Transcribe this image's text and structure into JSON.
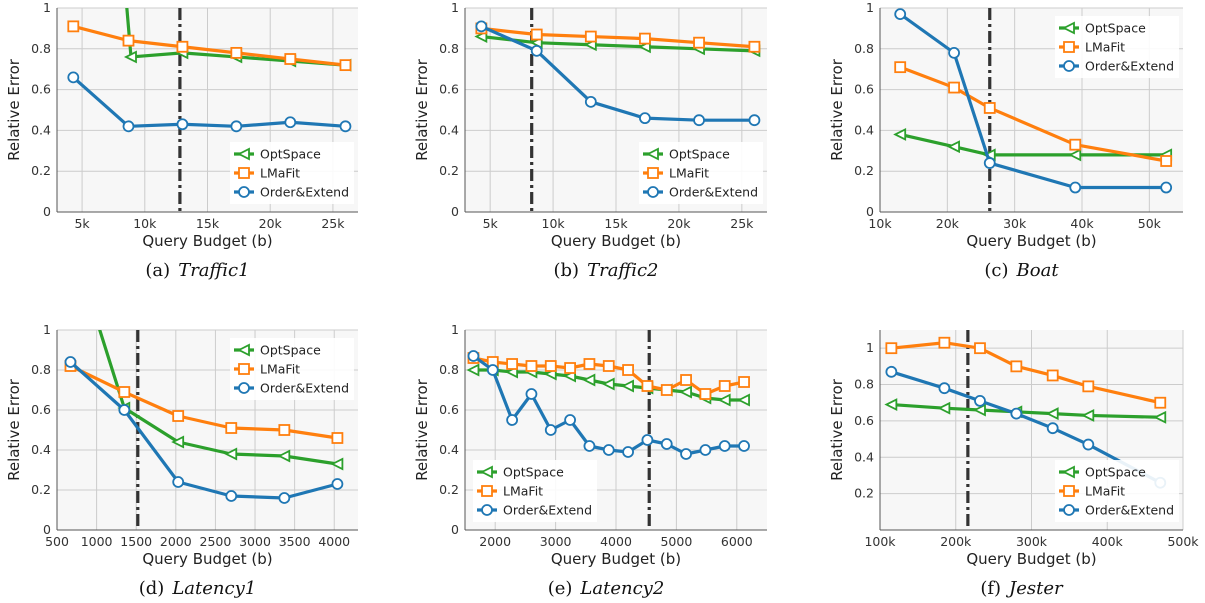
{
  "colors": {
    "OptSpace": "#2ca02c",
    "LMaFit": "#ff7f0e",
    "Order&Extend": "#1f77b4",
    "vline": "#333333",
    "grid": "#cccccc",
    "plot_bg": "#f7f7f7"
  },
  "marker_shapes": {
    "OptSpace": "triangle-left",
    "LMaFit": "square",
    "Order&Extend": "circle"
  },
  "chart_data": [
    {
      "type": "line",
      "caption_label": "(a)",
      "caption_name": "Traffic1",
      "xlabel": "Query Budget (b)",
      "ylabel": "Relative Error",
      "xlim": [
        3000,
        27000
      ],
      "ylim": [
        0,
        1
      ],
      "xticks": [
        5000,
        10000,
        15000,
        20000,
        25000
      ],
      "xtick_labels": [
        "5k",
        "10k",
        "15k",
        "20k",
        "25k"
      ],
      "yticks": [
        0,
        0.2,
        0.4,
        0.6,
        0.8,
        1
      ],
      "ytick_labels": [
        "0",
        "0.2",
        "0.4",
        "0.6",
        "0.8",
        "1"
      ],
      "vline": 12800,
      "grid": true,
      "legend_position": "bottom-right",
      "series": [
        {
          "name": "OptSpace",
          "x": [
            8500,
            8900,
            13000,
            17300,
            21600,
            26000
          ],
          "y": [
            1.05,
            0.76,
            0.78,
            0.76,
            0.74,
            0.72
          ]
        },
        {
          "name": "LMaFit",
          "x": [
            4300,
            8700,
            13000,
            17300,
            21600,
            26000
          ],
          "y": [
            0.91,
            0.84,
            0.81,
            0.78,
            0.75,
            0.72
          ]
        },
        {
          "name": "Order&Extend",
          "x": [
            4300,
            8700,
            13000,
            17300,
            21600,
            26000
          ],
          "y": [
            0.66,
            0.42,
            0.43,
            0.42,
            0.44,
            0.42
          ]
        }
      ]
    },
    {
      "type": "line",
      "caption_label": "(b)",
      "caption_name": "Traffic2",
      "xlabel": "Query Budget (b)",
      "ylabel": "Relative Error",
      "xlim": [
        3000,
        27000
      ],
      "ylim": [
        0,
        1
      ],
      "xticks": [
        5000,
        10000,
        15000,
        20000,
        25000
      ],
      "xtick_labels": [
        "5k",
        "10k",
        "15k",
        "20k",
        "25k"
      ],
      "yticks": [
        0,
        0.2,
        0.4,
        0.6,
        0.8,
        1
      ],
      "ytick_labels": [
        "0",
        "0.2",
        "0.4",
        "0.6",
        "0.8",
        "1"
      ],
      "vline": 8300,
      "grid": true,
      "legend_position": "bottom-right",
      "series": [
        {
          "name": "OptSpace",
          "x": [
            4300,
            8700,
            13000,
            17300,
            21600,
            26000
          ],
          "y": [
            0.86,
            0.83,
            0.82,
            0.81,
            0.8,
            0.79
          ]
        },
        {
          "name": "LMaFit",
          "x": [
            4300,
            8700,
            13000,
            17300,
            21600,
            26000
          ],
          "y": [
            0.9,
            0.87,
            0.86,
            0.85,
            0.83,
            0.81
          ]
        },
        {
          "name": "Order&Extend",
          "x": [
            4300,
            8700,
            13000,
            17300,
            21600,
            26000
          ],
          "y": [
            0.91,
            0.79,
            0.54,
            0.46,
            0.45,
            0.45
          ]
        }
      ]
    },
    {
      "type": "line",
      "caption_label": "(c)",
      "caption_name": "Boat",
      "xlabel": "Query Budget (b)",
      "ylabel": "Relative Error",
      "xlim": [
        10000,
        55000
      ],
      "ylim": [
        0,
        1
      ],
      "xticks": [
        10000,
        20000,
        30000,
        40000,
        50000
      ],
      "xtick_labels": [
        "10k",
        "20k",
        "30k",
        "40k",
        "50k"
      ],
      "yticks": [
        0,
        0.2,
        0.4,
        0.6,
        0.8,
        1
      ],
      "ytick_labels": [
        "0",
        "0.2",
        "0.4",
        "0.6",
        "0.8",
        "1"
      ],
      "vline": 26300,
      "grid": true,
      "legend_position": "top-right",
      "series": [
        {
          "name": "OptSpace",
          "x": [
            13000,
            21000,
            26300,
            39000,
            52500
          ],
          "y": [
            0.38,
            0.32,
            0.28,
            0.28,
            0.28
          ]
        },
        {
          "name": "LMaFit",
          "x": [
            13000,
            21000,
            26300,
            39000,
            52500
          ],
          "y": [
            0.71,
            0.61,
            0.51,
            0.33,
            0.25
          ]
        },
        {
          "name": "Order&Extend",
          "x": [
            13000,
            21000,
            26300,
            39000,
            52500
          ],
          "y": [
            0.97,
            0.78,
            0.24,
            0.12,
            0.12
          ]
        }
      ]
    },
    {
      "type": "line",
      "caption_label": "(d)",
      "caption_name": "Latency1",
      "xlabel": "Query Budget (b)",
      "ylabel": "Relative Error",
      "xlim": [
        500,
        4300
      ],
      "ylim": [
        0,
        1
      ],
      "xticks": [
        500,
        1000,
        1500,
        2000,
        2500,
        3000,
        3500,
        4000
      ],
      "xtick_labels": [
        "500",
        "1000",
        "1500",
        "2000",
        "2500",
        "3000",
        "3500",
        "4000"
      ],
      "yticks": [
        0,
        0.2,
        0.4,
        0.6,
        0.8,
        1
      ],
      "ytick_labels": [
        "0",
        "0.2",
        "0.4",
        "0.6",
        "0.8",
        "1"
      ],
      "vline": 1520,
      "grid": true,
      "legend_position": "top-right",
      "series": [
        {
          "name": "OptSpace",
          "x": [
            1000,
            1350,
            2030,
            2700,
            3370,
            4040
          ],
          "y": [
            1.05,
            0.61,
            0.44,
            0.38,
            0.37,
            0.33
          ]
        },
        {
          "name": "LMaFit",
          "x": [
            670,
            1350,
            2030,
            2700,
            3370,
            4040
          ],
          "y": [
            0.82,
            0.69,
            0.57,
            0.51,
            0.5,
            0.46
          ]
        },
        {
          "name": "Order&Extend",
          "x": [
            670,
            1350,
            2030,
            2700,
            3370,
            4040
          ],
          "y": [
            0.84,
            0.6,
            0.24,
            0.17,
            0.16,
            0.23
          ]
        }
      ]
    },
    {
      "type": "line",
      "caption_label": "(e)",
      "caption_name": "Latency2",
      "xlabel": "Query Budget (b)",
      "ylabel": "Relative Error",
      "xlim": [
        1500,
        6500
      ],
      "ylim": [
        0,
        1
      ],
      "xticks": [
        2000,
        3000,
        4000,
        5000,
        6000
      ],
      "xtick_labels": [
        "2000",
        "3000",
        "4000",
        "5000",
        "6000"
      ],
      "yticks": [
        0,
        0.2,
        0.4,
        0.6,
        0.8,
        1
      ],
      "ytick_labels": [
        "0",
        "0.2",
        "0.4",
        "0.6",
        "0.8",
        "1"
      ],
      "vline": 4550,
      "grid": true,
      "legend_position": "bottom-left",
      "series": [
        {
          "name": "OptSpace",
          "x": [
            1640,
            1960,
            2280,
            2600,
            2920,
            3240,
            3560,
            3880,
            4200,
            4520,
            4840,
            5160,
            5480,
            5800,
            6120
          ],
          "y": [
            0.8,
            0.8,
            0.79,
            0.79,
            0.78,
            0.77,
            0.75,
            0.73,
            0.72,
            0.71,
            0.7,
            0.69,
            0.66,
            0.65,
            0.65
          ]
        },
        {
          "name": "LMaFit",
          "x": [
            1640,
            1960,
            2280,
            2600,
            2920,
            3240,
            3560,
            3880,
            4200,
            4520,
            4840,
            5160,
            5480,
            5800,
            6120
          ],
          "y": [
            0.86,
            0.84,
            0.83,
            0.82,
            0.82,
            0.81,
            0.83,
            0.82,
            0.8,
            0.72,
            0.7,
            0.75,
            0.68,
            0.72,
            0.74
          ]
        },
        {
          "name": "Order&Extend",
          "x": [
            1640,
            1960,
            2280,
            2600,
            2920,
            3240,
            3560,
            3880,
            4200,
            4520,
            4840,
            5160,
            5480,
            5800,
            6120
          ],
          "y": [
            0.87,
            0.8,
            0.55,
            0.68,
            0.5,
            0.55,
            0.42,
            0.4,
            0.39,
            0.45,
            0.43,
            0.38,
            0.4,
            0.42,
            0.42
          ]
        }
      ]
    },
    {
      "type": "line",
      "caption_label": "(f)",
      "caption_name": "Jester",
      "xlabel": "Query Budget (b)",
      "ylabel": "Relative Error",
      "xlim": [
        100000,
        500000
      ],
      "ylim": [
        0,
        1.1
      ],
      "xticks": [
        100000,
        200000,
        300000,
        400000,
        500000
      ],
      "xtick_labels": [
        "100k",
        "200k",
        "300k",
        "400k",
        "500k"
      ],
      "yticks": [
        0.2,
        0.4,
        0.6,
        0.8,
        1
      ],
      "ytick_labels": [
        "0.2",
        "0.4",
        "0.6",
        "0.8",
        "1"
      ],
      "vline": 216000,
      "grid": true,
      "legend_position": "bottom-right",
      "series": [
        {
          "name": "OptSpace",
          "x": [
            115000,
            185000,
            232000,
            280000,
            328000,
            375000,
            470000
          ],
          "y": [
            0.69,
            0.67,
            0.66,
            0.65,
            0.64,
            0.63,
            0.62
          ]
        },
        {
          "name": "LMaFit",
          "x": [
            115000,
            185000,
            232000,
            280000,
            328000,
            375000,
            470000
          ],
          "y": [
            1.0,
            1.03,
            1.0,
            0.9,
            0.85,
            0.79,
            0.7
          ]
        },
        {
          "name": "Order&Extend",
          "x": [
            115000,
            185000,
            232000,
            280000,
            328000,
            375000,
            470000
          ],
          "y": [
            0.87,
            0.78,
            0.71,
            0.64,
            0.56,
            0.47,
            0.26
          ]
        }
      ]
    }
  ]
}
